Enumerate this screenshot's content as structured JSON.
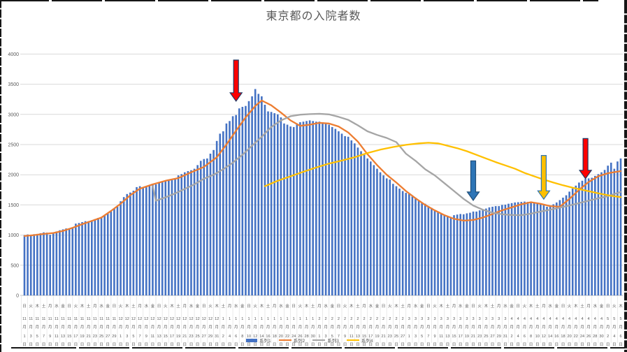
{
  "title": "東京都の入院者数",
  "legend": {
    "items": [
      {
        "label": "系列1",
        "type": "bar",
        "color": "#4472C4"
      },
      {
        "label": "系列2",
        "type": "line",
        "color": "#ED7D31"
      },
      {
        "label": "系列3",
        "type": "line",
        "color": "#A5A5A5"
      },
      {
        "label": "系列4",
        "type": "line",
        "color": "#FFC000"
      }
    ]
  },
  "colors": {
    "bar_blue": "#4472C4",
    "line_orange": "#ED7D31",
    "line_gray": "#A5A5A5",
    "line_yellow": "#FFC000",
    "gridline": "#D9D9D9",
    "axis_text": "#595959",
    "arrow_red": "#FF0000",
    "arrow_blue": "#2E75B6",
    "arrow_yellow": "#FFC000"
  },
  "chart_data": {
    "type": "bar",
    "title": "東京都の入院者数",
    "ylim": [
      0,
      4000
    ],
    "y_ticks": [
      0,
      500,
      1000,
      1500,
      2000,
      2500,
      3000,
      3500,
      4000
    ],
    "grid": true,
    "legend_position": "bottom",
    "x_label_every": 2,
    "month_suffix": "月",
    "day_suffix": "日",
    "x_tick_labels": [
      [
        "日",
        "11",
        "1"
      ],
      [
        "火",
        "11",
        "3"
      ],
      [
        "木",
        "11",
        "5"
      ],
      [
        "土",
        "11",
        "7"
      ],
      [
        "月",
        "11",
        "9"
      ],
      [
        "水",
        "11",
        "11"
      ],
      [
        "金",
        "11",
        "13"
      ],
      [
        "日",
        "11",
        "15"
      ],
      [
        "火",
        "11",
        "17"
      ],
      [
        "木",
        "11",
        "19"
      ],
      [
        "土",
        "11",
        "21"
      ],
      [
        "月",
        "11",
        "23"
      ],
      [
        "水",
        "11",
        "25"
      ],
      [
        "金",
        "11",
        "27"
      ],
      [
        "日",
        "11",
        "29"
      ],
      [
        "火",
        "12",
        "1"
      ],
      [
        "木",
        "12",
        "3"
      ],
      [
        "土",
        "12",
        "5"
      ],
      [
        "月",
        "12",
        "7"
      ],
      [
        "水",
        "12",
        "9"
      ],
      [
        "金",
        "12",
        "11"
      ],
      [
        "日",
        "12",
        "13"
      ],
      [
        "火",
        "12",
        "15"
      ],
      [
        "木",
        "12",
        "17"
      ],
      [
        "土",
        "12",
        "19"
      ],
      [
        "月",
        "12",
        "21"
      ],
      [
        "水",
        "12",
        "23"
      ],
      [
        "金",
        "12",
        "25"
      ],
      [
        "日",
        "12",
        "27"
      ],
      [
        "火",
        "12",
        "29"
      ],
      [
        "木",
        "12",
        "31"
      ],
      [
        "土",
        "1",
        "2"
      ],
      [
        "月",
        "1",
        "4"
      ],
      [
        "水",
        "1",
        "6"
      ],
      [
        "金",
        "1",
        "8"
      ],
      [
        "日",
        "1",
        "10"
      ],
      [
        "火",
        "1",
        "12"
      ],
      [
        "木",
        "1",
        "14"
      ],
      [
        "土",
        "1",
        "16"
      ],
      [
        "月",
        "1",
        "18"
      ],
      [
        "水",
        "1",
        "20"
      ],
      [
        "金",
        "1",
        "22"
      ],
      [
        "日",
        "1",
        "24"
      ],
      [
        "火",
        "1",
        "26"
      ],
      [
        "木",
        "1",
        "28"
      ],
      [
        "土",
        "1",
        "30"
      ],
      [
        "月",
        "2",
        "1"
      ],
      [
        "水",
        "2",
        "3"
      ],
      [
        "金",
        "2",
        "5"
      ],
      [
        "日",
        "2",
        "7"
      ],
      [
        "火",
        "2",
        "9"
      ],
      [
        "木",
        "2",
        "11"
      ],
      [
        "土",
        "2",
        "13"
      ],
      [
        "月",
        "2",
        "15"
      ],
      [
        "水",
        "2",
        "17"
      ],
      [
        "金",
        "2",
        "19"
      ],
      [
        "日",
        "2",
        "21"
      ],
      [
        "火",
        "2",
        "23"
      ],
      [
        "木",
        "2",
        "25"
      ],
      [
        "土",
        "2",
        "27"
      ],
      [
        "月",
        "3",
        "1"
      ],
      [
        "水",
        "3",
        "3"
      ],
      [
        "金",
        "3",
        "5"
      ],
      [
        "日",
        "3",
        "7"
      ],
      [
        "火",
        "3",
        "9"
      ],
      [
        "木",
        "3",
        "11"
      ],
      [
        "土",
        "3",
        "13"
      ],
      [
        "月",
        "3",
        "15"
      ],
      [
        "水",
        "3",
        "17"
      ],
      [
        "金",
        "3",
        "19"
      ],
      [
        "日",
        "3",
        "21"
      ],
      [
        "火",
        "3",
        "23"
      ],
      [
        "木",
        "3",
        "25"
      ],
      [
        "土",
        "3",
        "27"
      ],
      [
        "月",
        "3",
        "29"
      ],
      [
        "水",
        "3",
        "31"
      ],
      [
        "金",
        "4",
        "2"
      ],
      [
        "日",
        "4",
        "4"
      ],
      [
        "火",
        "4",
        "6"
      ],
      [
        "木",
        "4",
        "8"
      ],
      [
        "土",
        "4",
        "10"
      ],
      [
        "月",
        "4",
        "12"
      ],
      [
        "水",
        "4",
        "14"
      ],
      [
        "金",
        "4",
        "16"
      ],
      [
        "日",
        "4",
        "18"
      ],
      [
        "火",
        "4",
        "20"
      ],
      [
        "木",
        "4",
        "22"
      ],
      [
        "土",
        "4",
        "24"
      ],
      [
        "月",
        "4",
        "26"
      ],
      [
        "水",
        "4",
        "28"
      ],
      [
        "金",
        "4",
        "30"
      ],
      [
        "日",
        "5",
        "2"
      ],
      [
        "火",
        "5",
        "4"
      ],
      [
        "木",
        "5",
        "6"
      ]
    ],
    "series": [
      {
        "name": "系列1",
        "type": "bar",
        "color": "#4472C4",
        "values": [
          1000,
          1010,
          995,
          1015,
          1020,
          1030,
          1045,
          1040,
          1005,
          1025,
          1060,
          1080,
          1095,
          1110,
          1105,
          1130,
          1190,
          1200,
          1215,
          1230,
          1230,
          1245,
          1265,
          1285,
          1295,
          1320,
          1365,
          1395,
          1440,
          1470,
          1560,
          1630,
          1680,
          1705,
          1735,
          1795,
          1810,
          1780,
          1800,
          1830,
          1850,
          1840,
          1865,
          1885,
          1910,
          1915,
          1910,
          1925,
          1990,
          2010,
          2040,
          2060,
          2075,
          2100,
          2160,
          2230,
          2260,
          2270,
          2350,
          2410,
          2560,
          2680,
          2720,
          2850,
          2890,
          2970,
          2990,
          3100,
          3125,
          3140,
          3220,
          3300,
          3420,
          3340,
          3300,
          3160,
          3050,
          3040,
          3020,
          3000,
          2950,
          2850,
          2830,
          2800,
          2790,
          2850,
          2870,
          2880,
          2890,
          2900,
          2890,
          2880,
          2880,
          2870,
          2860,
          2830,
          2790,
          2760,
          2720,
          2680,
          2640,
          2630,
          2570,
          2520,
          2450,
          2390,
          2330,
          2270,
          2220,
          2160,
          2100,
          2040,
          1990,
          1940,
          1920,
          1850,
          1810,
          1770,
          1730,
          1700,
          1680,
          1640,
          1620,
          1580,
          1540,
          1520,
          1480,
          1450,
          1400,
          1380,
          1350,
          1330,
          1310,
          1300,
          1330,
          1340,
          1350,
          1345,
          1360,
          1370,
          1390,
          1390,
          1410,
          1420,
          1440,
          1460,
          1470,
          1480,
          1480,
          1500,
          1505,
          1520,
          1530,
          1540,
          1545,
          1550,
          1555,
          1550,
          1540,
          1530,
          1520,
          1510,
          1500,
          1470,
          1490,
          1510,
          1540,
          1580,
          1620,
          1660,
          1720,
          1770,
          1820,
          1870,
          1900,
          1930,
          1940,
          1950,
          1980,
          2010,
          2040,
          2080,
          2150,
          2200,
          2100,
          2220,
          2270
        ]
      },
      {
        "name": "系列2",
        "type": "line",
        "color": "#ED7D31",
        "points": [
          [
            0,
            985
          ],
          [
            3,
            1000
          ],
          [
            6,
            1020
          ],
          [
            9,
            1035
          ],
          [
            12,
            1070
          ],
          [
            15,
            1120
          ],
          [
            18,
            1180
          ],
          [
            21,
            1235
          ],
          [
            24,
            1290
          ],
          [
            27,
            1400
          ],
          [
            30,
            1520
          ],
          [
            33,
            1660
          ],
          [
            36,
            1770
          ],
          [
            40,
            1840
          ],
          [
            44,
            1900
          ],
          [
            48,
            1945
          ],
          [
            52,
            2040
          ],
          [
            56,
            2130
          ],
          [
            60,
            2290
          ],
          [
            63,
            2500
          ],
          [
            66,
            2730
          ],
          [
            69,
            2950
          ],
          [
            72,
            3140
          ],
          [
            74,
            3230
          ],
          [
            77,
            3150
          ],
          [
            80,
            3030
          ],
          [
            83,
            2900
          ],
          [
            86,
            2810
          ],
          [
            89,
            2830
          ],
          [
            92,
            2860
          ],
          [
            95,
            2850
          ],
          [
            98,
            2800
          ],
          [
            101,
            2700
          ],
          [
            104,
            2550
          ],
          [
            107,
            2340
          ],
          [
            110,
            2160
          ],
          [
            113,
            2000
          ],
          [
            116,
            1870
          ],
          [
            119,
            1730
          ],
          [
            122,
            1610
          ],
          [
            125,
            1500
          ],
          [
            128,
            1410
          ],
          [
            131,
            1330
          ],
          [
            134,
            1270
          ],
          [
            137,
            1240
          ],
          [
            140,
            1250
          ],
          [
            143,
            1290
          ],
          [
            146,
            1350
          ],
          [
            149,
            1410
          ],
          [
            152,
            1460
          ],
          [
            155,
            1510
          ],
          [
            158,
            1545
          ],
          [
            161,
            1520
          ],
          [
            164,
            1480
          ],
          [
            167,
            1470
          ],
          [
            170,
            1600
          ],
          [
            173,
            1750
          ],
          [
            176,
            1880
          ],
          [
            179,
            1975
          ],
          [
            182,
            2025
          ],
          [
            186,
            2060
          ]
        ]
      },
      {
        "name": "系列3",
        "type": "line",
        "color": "#A5A5A5",
        "points": [
          [
            40,
            1810
          ],
          [
            41,
            1570
          ],
          [
            44,
            1625
          ],
          [
            47,
            1690
          ],
          [
            50,
            1765
          ],
          [
            53,
            1840
          ],
          [
            56,
            1935
          ],
          [
            59,
            2000
          ],
          [
            62,
            2090
          ],
          [
            65,
            2200
          ],
          [
            68,
            2330
          ],
          [
            71,
            2480
          ],
          [
            74,
            2630
          ],
          [
            77,
            2790
          ],
          [
            80,
            2900
          ],
          [
            83,
            2970
          ],
          [
            86,
            2995
          ],
          [
            89,
            3005
          ],
          [
            92,
            3010
          ],
          [
            95,
            3000
          ],
          [
            98,
            2960
          ],
          [
            101,
            2910
          ],
          [
            104,
            2820
          ],
          [
            107,
            2720
          ],
          [
            110,
            2660
          ],
          [
            113,
            2610
          ],
          [
            116,
            2540
          ],
          [
            119,
            2350
          ],
          [
            122,
            2230
          ],
          [
            125,
            2090
          ],
          [
            128,
            1990
          ],
          [
            131,
            1860
          ],
          [
            134,
            1730
          ],
          [
            137,
            1600
          ],
          [
            140,
            1490
          ],
          [
            143,
            1420
          ],
          [
            146,
            1370
          ],
          [
            149,
            1345
          ],
          [
            152,
            1333
          ],
          [
            155,
            1330
          ],
          [
            158,
            1355
          ],
          [
            161,
            1390
          ],
          [
            164,
            1420
          ],
          [
            167,
            1455
          ],
          [
            170,
            1490
          ],
          [
            173,
            1530
          ],
          [
            176,
            1570
          ],
          [
            179,
            1610
          ],
          [
            182,
            1645
          ],
          [
            184,
            1680
          ],
          [
            186,
            1715
          ]
        ]
      },
      {
        "name": "系列4",
        "type": "line",
        "color": "#FFC000",
        "points": [
          [
            75,
            1810
          ],
          [
            79,
            1900
          ],
          [
            83,
            1975
          ],
          [
            87,
            2050
          ],
          [
            91,
            2120
          ],
          [
            95,
            2185
          ],
          [
            99,
            2235
          ],
          [
            103,
            2290
          ],
          [
            107,
            2360
          ],
          [
            111,
            2415
          ],
          [
            115,
            2460
          ],
          [
            119,
            2495
          ],
          [
            123,
            2520
          ],
          [
            126,
            2530
          ],
          [
            129,
            2520
          ],
          [
            132,
            2480
          ],
          [
            135,
            2440
          ],
          [
            138,
            2390
          ],
          [
            141,
            2330
          ],
          [
            144,
            2270
          ],
          [
            147,
            2210
          ],
          [
            150,
            2155
          ],
          [
            153,
            2100
          ],
          [
            156,
            2030
          ],
          [
            159,
            1975
          ],
          [
            162,
            1920
          ],
          [
            165,
            1870
          ],
          [
            168,
            1825
          ],
          [
            171,
            1785
          ],
          [
            174,
            1750
          ],
          [
            177,
            1715
          ],
          [
            180,
            1680
          ],
          [
            183,
            1650
          ],
          [
            186,
            1630
          ]
        ]
      }
    ],
    "annotations": [
      {
        "name": "red-down-arrow-jan",
        "shape": "down-arrow",
        "x_index": 66,
        "v_top": 3900,
        "v_tip": 3220,
        "fill": "#FF0000",
        "stroke": "#203864"
      },
      {
        "name": "blue-down-arrow-mar",
        "shape": "down-arrow",
        "x_index": 140,
        "v_top": 2230,
        "v_tip": 1575,
        "fill": "#2E75B6",
        "stroke": "#1F4E79"
      },
      {
        "name": "yellow-down-arrow-apr",
        "shape": "down-arrow",
        "x_index": 162,
        "v_top": 2320,
        "v_tip": 1595,
        "fill": "#FFC000",
        "stroke": "#2E75B6"
      },
      {
        "name": "red-down-arrow-late-apr",
        "shape": "down-arrow",
        "x_index": 175,
        "v_top": 2600,
        "v_tip": 1935,
        "fill": "#FF0000",
        "stroke": "#203864"
      }
    ]
  }
}
